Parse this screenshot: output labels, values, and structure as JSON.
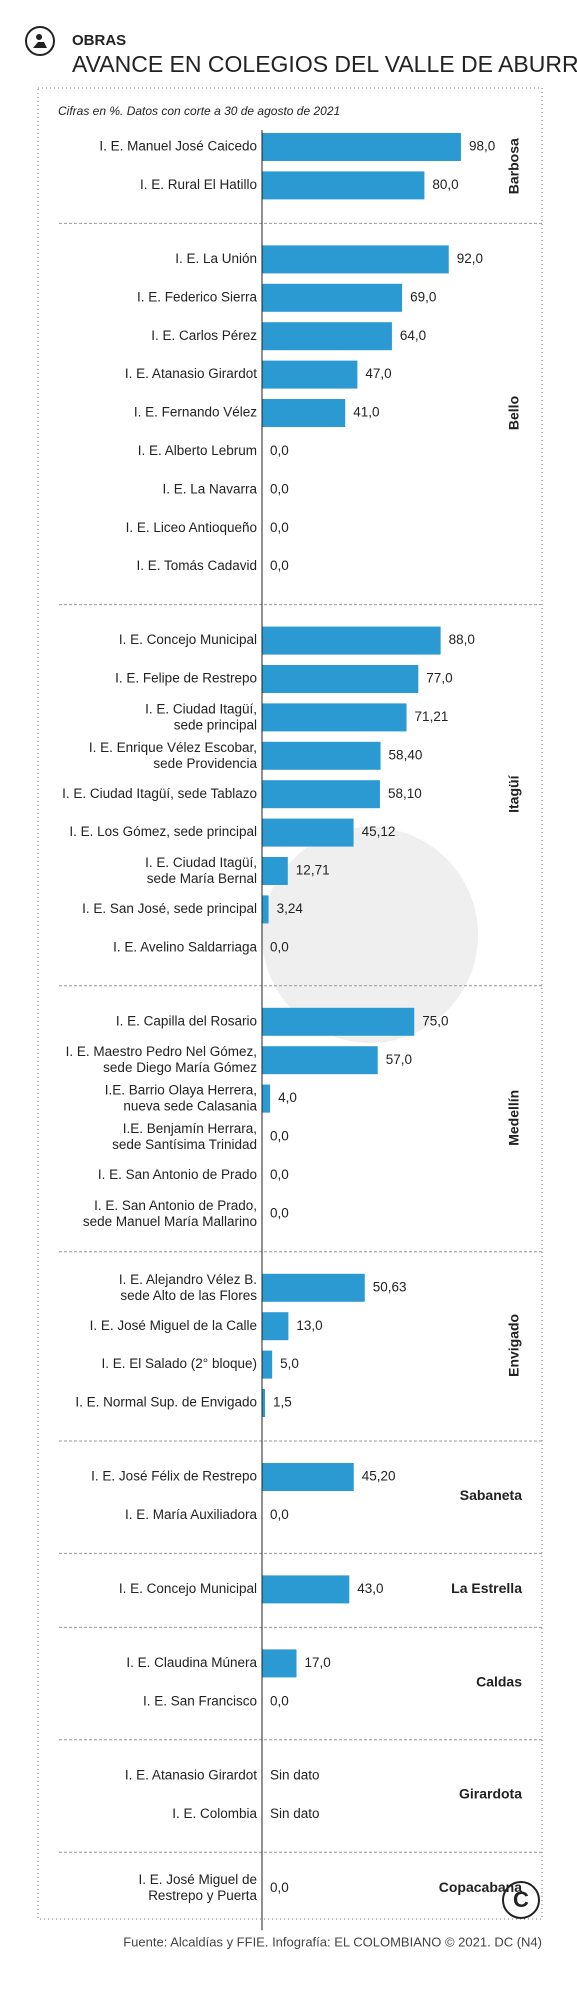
{
  "chart_data": {
    "type": "bar",
    "kicker": "OBRAS",
    "title": "AVANCE EN COLEGIOS DEL VALLE DE ABURRÁ",
    "subtitle": "Cifras en %. Datos con corte a 30 de agosto de 2021",
    "source": "Fuente: Alcaldías y FFIE. Infografía: EL COLOMBIANO © 2021. DC (N4)",
    "color": "#2b9ad3",
    "xlim": [
      0,
      100
    ],
    "groups": [
      {
        "name": "Barbosa",
        "categories": [
          "I. E. Manuel José Caicedo",
          "I. E. Rural El Hatillo"
        ],
        "values": [
          98.0,
          80.0
        ],
        "value_labels": [
          "98,0",
          "80,0"
        ]
      },
      {
        "name": "Bello",
        "categories": [
          "I. E. La Unión",
          "I. E. Federico Sierra",
          "I. E. Carlos Pérez",
          "I. E. Atanasio Girardot",
          "I. E. Fernando Vélez",
          "I. E. Alberto Lebrum",
          "I. E. La Navarra",
          "I. E. Liceo Antioqueño",
          "I. E. Tomás Cadavid"
        ],
        "values": [
          92.0,
          69.0,
          64.0,
          47.0,
          41.0,
          0,
          0,
          0,
          0
        ],
        "value_labels": [
          "92,0",
          "69,0",
          "64,0",
          "47,0",
          "41,0",
          "0,0",
          "0,0",
          "0,0",
          "0,0"
        ]
      },
      {
        "name": "Itagüí",
        "categories": [
          "I. E. Concejo Municipal",
          "I. E. Felipe de Restrepo",
          "I. E. Ciudad Itagüí,\nsede principal",
          "I. E. Enrique Vélez Escobar,\nsede Providencia",
          "I. E. Ciudad Itagüí, sede Tablazo",
          "I. E. Los Gómez, sede principal",
          "I. E. Ciudad Itagüí,\nsede María Bernal",
          "I. E. San José, sede principal",
          "I. E. Avelino Saldarriaga"
        ],
        "values": [
          88.0,
          77.0,
          71.21,
          58.4,
          58.1,
          45.12,
          12.71,
          3.24,
          0
        ],
        "value_labels": [
          "88,0",
          "77,0",
          "71,21",
          "58,40",
          "58,10",
          "45,12",
          "12,71",
          "3,24",
          "0,0"
        ]
      },
      {
        "name": "Medellín",
        "categories": [
          "I. E. Capilla del Rosario",
          "I. E. Maestro Pedro Nel Gómez,\nsede Diego María Gómez",
          "I.E. Barrio Olaya Herrera,\nnueva sede Calasania",
          "I.E. Benjamín Herrara,\nsede Santísima Trinidad",
          "I. E. San Antonio de Prado",
          "I. E. San Antonio de Prado,\nsede Manuel María Mallarino"
        ],
        "values": [
          75.0,
          57.0,
          4.0,
          0,
          0,
          0
        ],
        "value_labels": [
          "75,0",
          "57,0",
          "4,0",
          "0,0",
          "0,0",
          "0,0"
        ]
      },
      {
        "name": "Envigado",
        "categories": [
          "I. E. Alejandro Vélez B.\nsede Alto de las Flores",
          "I. E. José Miguel de la Calle",
          "I. E. El Salado (2° bloque)",
          "I. E. Normal Sup. de Envigado"
        ],
        "values": [
          50.63,
          13.0,
          5.0,
          1.5
        ],
        "value_labels": [
          "50,63",
          "13,0",
          "5,0",
          "1,5"
        ]
      },
      {
        "name": "Sabaneta",
        "categories": [
          "I. E. José Félix de Restrepo",
          "I. E. María Auxiliadora"
        ],
        "values": [
          45.2,
          0
        ],
        "value_labels": [
          "45,20",
          "0,0"
        ]
      },
      {
        "name": "La Estrella",
        "categories": [
          "I. E. Concejo Municipal"
        ],
        "values": [
          43.0
        ],
        "value_labels": [
          "43,0"
        ]
      },
      {
        "name": "Caldas",
        "categories": [
          "I. E. Claudina Múnera",
          "I. E. San Francisco"
        ],
        "values": [
          17.0,
          0
        ],
        "value_labels": [
          "17,0",
          "0,0"
        ]
      },
      {
        "name": "Girardota",
        "categories": [
          "I. E. Atanasio Girardot",
          "I. E. Colombia"
        ],
        "values": [
          null,
          null
        ],
        "value_labels": [
          "Sin dato",
          "Sin dato"
        ]
      },
      {
        "name": "Copacabana",
        "categories": [
          "I. E. José Miguel de\nRestrepo y Puerta"
        ],
        "values": [
          0
        ],
        "value_labels": [
          "0,0"
        ]
      }
    ]
  }
}
